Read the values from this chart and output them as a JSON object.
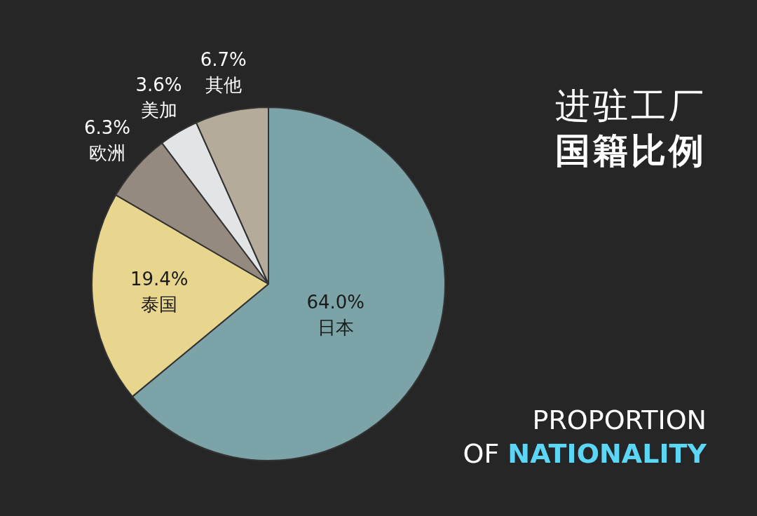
{
  "chart_data": {
    "type": "pie",
    "title": "进驻工厂",
    "subtitle": "国籍比例",
    "annotations": [
      "PROPORTION OF NATIONALITY"
    ],
    "categories": [
      "日本",
      "泰国",
      "欧洲",
      "美加",
      "其他"
    ],
    "values": [
      64.0,
      19.4,
      6.3,
      3.6,
      6.7
    ],
    "value_labels": [
      "64.0%",
      "19.4%",
      "6.3%",
      "3.6%",
      "6.7%"
    ],
    "colors": [
      "#7ba3a8",
      "#e8d68f",
      "#958a7f",
      "#e3e4e6",
      "#b5ab9b"
    ],
    "legend": false
  }
}
